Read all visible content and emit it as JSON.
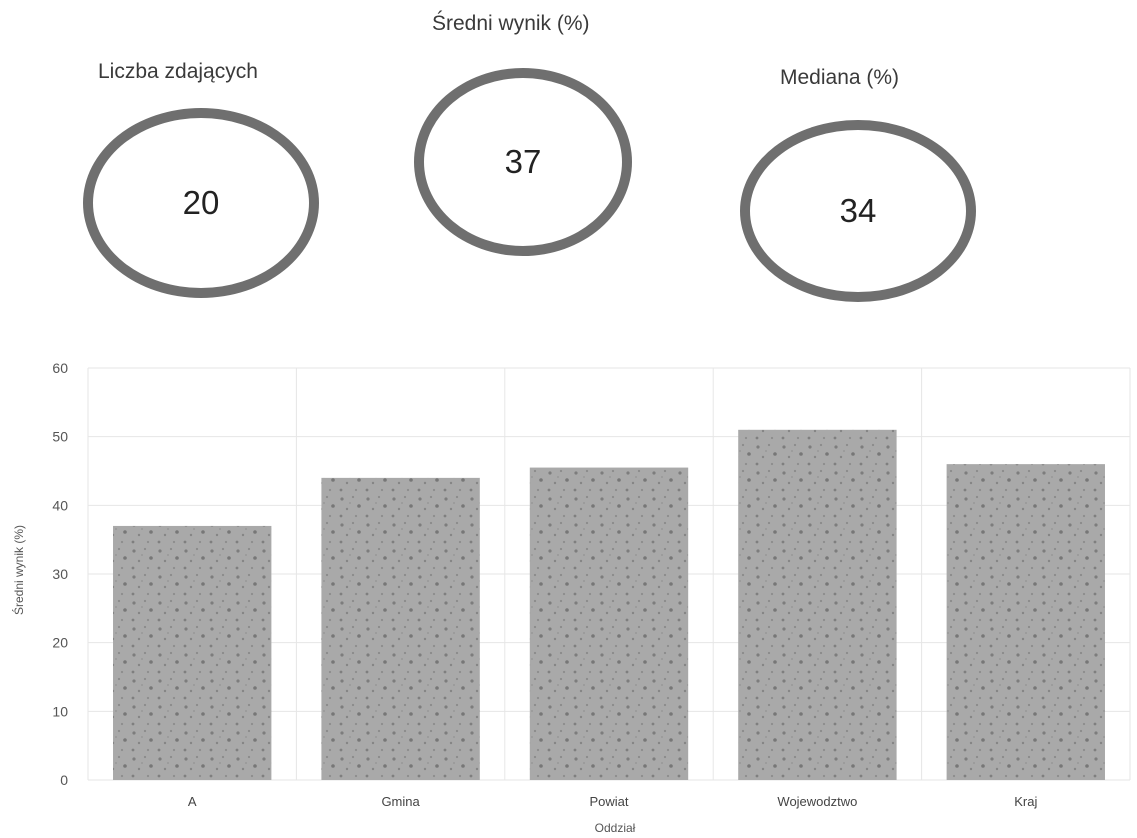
{
  "kpis": [
    {
      "label": "Liczba zdających",
      "value": "20"
    },
    {
      "label": "Średni wynik (%)",
      "value": "37"
    },
    {
      "label": "Mediana (%)",
      "value": "34"
    }
  ],
  "colors": {
    "ring": "#6f6f6f",
    "bar": "#a9a9a9",
    "bar_texture": "#7d7d7d",
    "grid": "#e6e6e6"
  },
  "chart_data": {
    "type": "bar",
    "categories": [
      "A",
      "Gmina",
      "Powiat",
      "Wojewodztwo",
      "Kraj"
    ],
    "values": [
      37,
      44,
      45.5,
      51,
      46
    ],
    "xlabel": "Oddział",
    "ylabel": "Średni wynik (%)",
    "ylim": [
      0,
      60
    ],
    "yticks": [
      0,
      10,
      20,
      30,
      40,
      50,
      60
    ],
    "grid": true,
    "legend": "none"
  }
}
